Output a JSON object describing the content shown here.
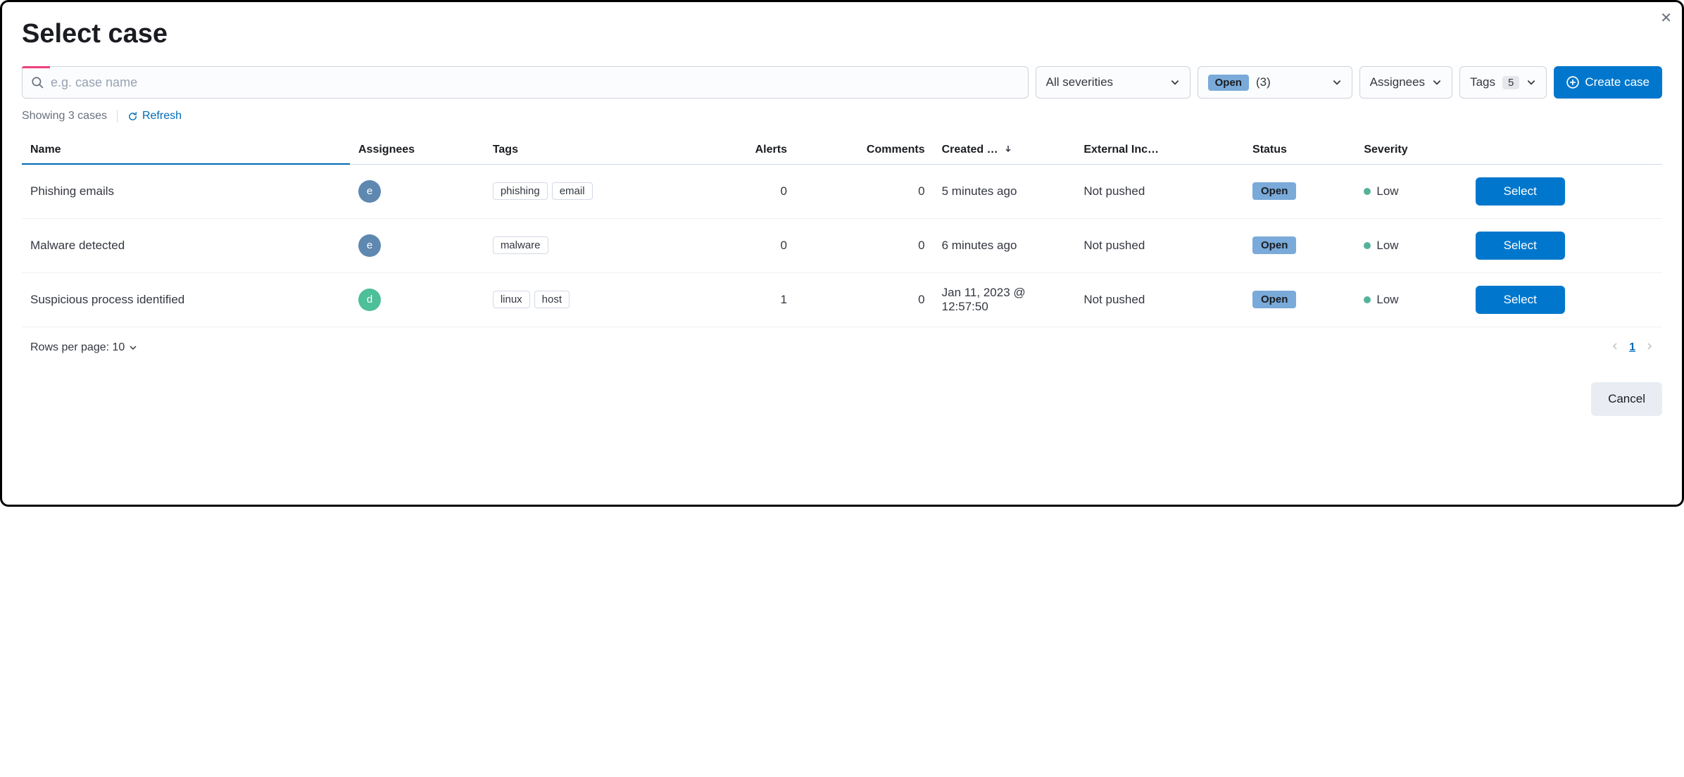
{
  "modal": {
    "title": "Select case",
    "close_label": "Close"
  },
  "search": {
    "placeholder": "e.g. case name"
  },
  "filters": {
    "severity": {
      "label": "All severities"
    },
    "status": {
      "badge": "Open",
      "count": "(3)"
    },
    "assignees": {
      "label": "Assignees"
    },
    "tags": {
      "label": "Tags",
      "count": "5"
    }
  },
  "create_button": "Create case",
  "meta": {
    "showing": "Showing 3 cases",
    "refresh": "Refresh"
  },
  "columns": {
    "name": "Name",
    "assignees": "Assignees",
    "tags": "Tags",
    "alerts": "Alerts",
    "comments": "Comments",
    "created": "Created …",
    "external": "External Inc…",
    "status": "Status",
    "severity": "Severity"
  },
  "rows": [
    {
      "name": "Phishing emails",
      "assignee": {
        "initial": "e",
        "color": "#5e88b0"
      },
      "tags": [
        "phishing",
        "email"
      ],
      "alerts": "0",
      "comments": "0",
      "created": "5 minutes ago",
      "external": "Not pushed",
      "status": "Open",
      "severity": {
        "label": "Low",
        "color": "#54b399"
      },
      "action": "Select"
    },
    {
      "name": "Malware detected",
      "assignee": {
        "initial": "e",
        "color": "#5e88b0"
      },
      "tags": [
        "malware"
      ],
      "alerts": "0",
      "comments": "0",
      "created": "6 minutes ago",
      "external": "Not pushed",
      "status": "Open",
      "severity": {
        "label": "Low",
        "color": "#54b399"
      },
      "action": "Select"
    },
    {
      "name": "Suspicious process identified",
      "assignee": {
        "initial": "d",
        "color": "#4dbf99"
      },
      "tags": [
        "linux",
        "host"
      ],
      "alerts": "1",
      "comments": "0",
      "created": "Jan 11, 2023 @ 12:57:50",
      "external": "Not pushed",
      "status": "Open",
      "severity": {
        "label": "Low",
        "color": "#54b399"
      },
      "action": "Select"
    }
  ],
  "pagination": {
    "rows_per_page": "Rows per page: 10",
    "current": "1"
  },
  "footer": {
    "cancel": "Cancel"
  },
  "colors": {
    "primary": "#0077cc",
    "badge_open_bg": "#79aad9"
  }
}
